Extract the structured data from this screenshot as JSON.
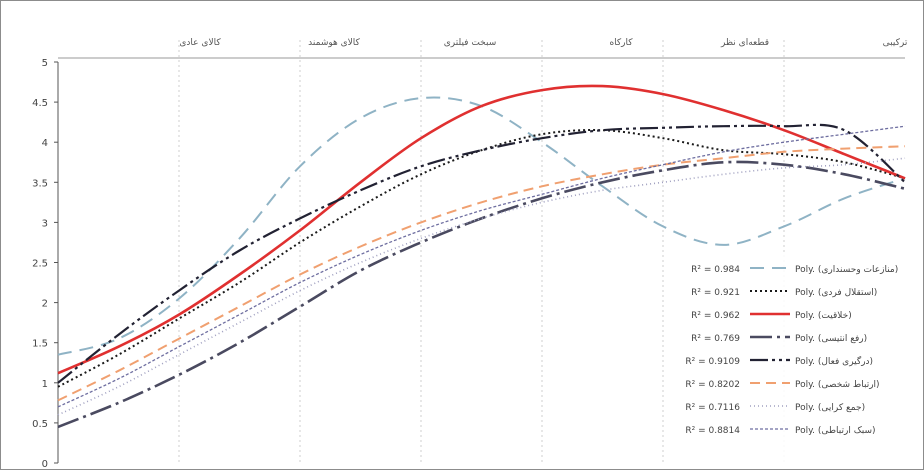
{
  "chart_data": {
    "type": "line",
    "title": "",
    "xlabel": "",
    "ylabel": "",
    "categories": [
      "ترکیبی",
      "قطعه‌ای نظر",
      "کارکاه",
      "سبخت فیلتری",
      "کالای هوشمند",
      "کالای عادی"
    ],
    "ylim": [
      0,
      5
    ],
    "yticks": [
      "0",
      "0.5",
      "1",
      "1.5",
      "2",
      "2.5",
      "3",
      "3.5",
      "4",
      "4.5",
      "5"
    ],
    "x_axis_position": "top",
    "legend_position": "bottom-right",
    "series": [
      {
        "name": "Poly. (منازعات وحسنداری)",
        "r2": "R² = 0.984",
        "color": "#8fb3c5",
        "dash": "14,8",
        "width": 2,
        "x": [
          0,
          0.5,
          1,
          1.5,
          2,
          2.5,
          3,
          3.5,
          4,
          4.5,
          5,
          5.5,
          6,
          6.5,
          7
        ],
        "values": [
          1.35,
          1.55,
          2.05,
          2.8,
          3.7,
          4.3,
          4.55,
          4.45,
          4.0,
          3.45,
          2.95,
          2.72,
          2.95,
          3.3,
          3.55
        ]
      },
      {
        "name": "Poly. (استقلال فردی)",
        "r2": "R² = 0.921",
        "color": "#1a1a1a",
        "dash": "2,3",
        "width": 2,
        "x": [
          0,
          0.5,
          1,
          1.5,
          2,
          2.5,
          3,
          3.5,
          4,
          4.5,
          5,
          5.5,
          6,
          6.5,
          7
        ],
        "values": [
          0.95,
          1.35,
          1.8,
          2.25,
          2.75,
          3.2,
          3.6,
          3.9,
          4.1,
          4.15,
          4.05,
          3.9,
          3.85,
          3.75,
          3.55
        ]
      },
      {
        "name": "Poly. (خلاقیت)",
        "r2": "R² = 0.962",
        "color": "#e03030",
        "dash": "",
        "width": 2.6,
        "x": [
          0,
          0.5,
          1,
          1.5,
          2,
          2.5,
          3,
          3.5,
          4,
          4.5,
          5,
          5.5,
          6,
          6.5,
          7
        ],
        "values": [
          1.12,
          1.45,
          1.85,
          2.35,
          2.9,
          3.5,
          4.05,
          4.45,
          4.65,
          4.7,
          4.6,
          4.4,
          4.15,
          3.85,
          3.55
        ]
      },
      {
        "name": "Poly. (رفع انتیسی)",
        "r2": "R² = 0.769",
        "color": "#4a4a60",
        "dash": "22,5,3,5",
        "width": 2.6,
        "x": [
          0,
          0.5,
          1,
          1.5,
          2,
          2.5,
          3,
          3.5,
          4,
          4.5,
          5,
          5.5,
          6,
          6.5,
          7
        ],
        "values": [
          0.45,
          0.75,
          1.1,
          1.5,
          1.95,
          2.4,
          2.75,
          3.05,
          3.3,
          3.5,
          3.65,
          3.75,
          3.72,
          3.6,
          3.42
        ]
      },
      {
        "name": "Poly. (درگیری فعال)",
        "r2": "R² = 0.9109",
        "color": "#222233",
        "dash": "18,4,3,4,3,4",
        "width": 2.2,
        "x": [
          0,
          0.5,
          1,
          1.5,
          2,
          2.5,
          3,
          3.5,
          4,
          4.5,
          5,
          5.5,
          6,
          6.5,
          7
        ],
        "values": [
          1.0,
          1.6,
          2.15,
          2.65,
          3.05,
          3.4,
          3.7,
          3.9,
          4.05,
          4.15,
          4.18,
          4.2,
          4.2,
          4.15,
          3.5
        ]
      },
      {
        "name": "Poly. (ارتباط شخصی)",
        "r2": "R² = 0.8202",
        "color": "#f0a070",
        "dash": "10,6",
        "width": 2,
        "x": [
          0,
          0.5,
          1,
          1.5,
          2,
          2.5,
          3,
          3.5,
          4,
          4.5,
          5,
          5.5,
          6,
          6.5,
          7
        ],
        "values": [
          0.78,
          1.15,
          1.55,
          1.95,
          2.35,
          2.7,
          3.0,
          3.25,
          3.45,
          3.6,
          3.72,
          3.8,
          3.88,
          3.92,
          3.95
        ]
      },
      {
        "name": "Poly. (جمع کرایی)",
        "r2": "R² = 0.7116",
        "color": "#a0a0c0",
        "dash": "1,3",
        "width": 1.6,
        "x": [
          0,
          0.5,
          1,
          1.5,
          2,
          2.5,
          3,
          3.5,
          4,
          4.5,
          5,
          5.5,
          6,
          6.5,
          7
        ],
        "values": [
          0.6,
          0.95,
          1.35,
          1.75,
          2.15,
          2.5,
          2.8,
          3.05,
          3.25,
          3.4,
          3.5,
          3.6,
          3.68,
          3.72,
          3.8
        ]
      },
      {
        "name": "Poly. (سبک ارتباطی)",
        "r2": "R² = 0.8814",
        "color": "#6e6ea0",
        "dash": "3,2",
        "width": 1.3,
        "x": [
          0,
          0.5,
          1,
          1.5,
          2,
          2.5,
          3,
          3.5,
          4,
          4.5,
          5,
          5.5,
          6,
          6.5,
          7
        ],
        "values": [
          0.7,
          1.05,
          1.45,
          1.85,
          2.25,
          2.6,
          2.9,
          3.15,
          3.35,
          3.55,
          3.72,
          3.88,
          4.0,
          4.1,
          4.2
        ]
      }
    ]
  }
}
